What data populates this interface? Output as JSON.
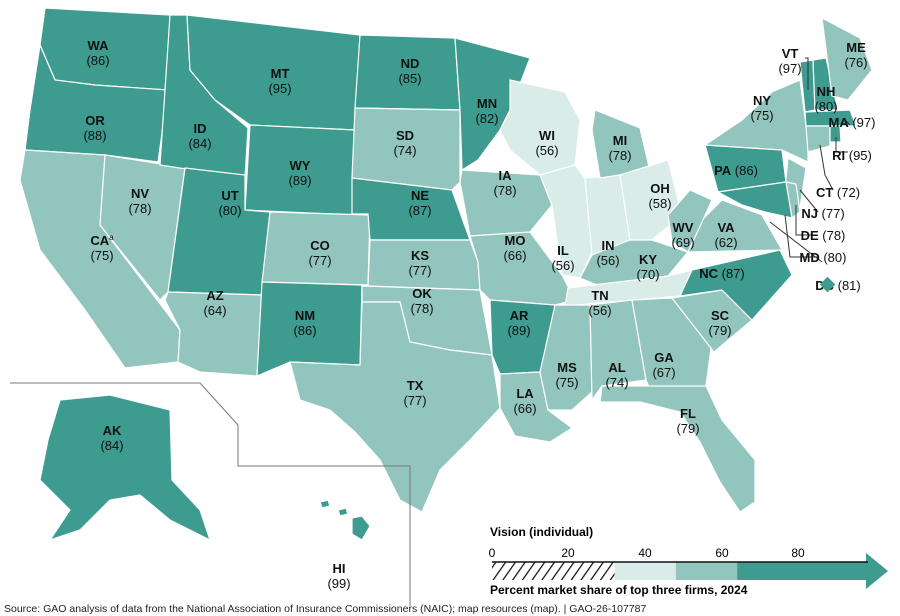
{
  "colors": {
    "tier_80_100": "#3e9b8f",
    "tier_60_80": "#92c5bd",
    "tier_40_60": "#d9ece8",
    "border": "#ffffff"
  },
  "states": [
    {
      "abbr": "WA",
      "value": 86
    },
    {
      "abbr": "OR",
      "value": 88
    },
    {
      "abbr": "CA",
      "value": 75,
      "note": "a"
    },
    {
      "abbr": "NV",
      "value": 78
    },
    {
      "abbr": "ID",
      "value": 84
    },
    {
      "abbr": "MT",
      "value": 95
    },
    {
      "abbr": "WY",
      "value": 89
    },
    {
      "abbr": "UT",
      "value": 80
    },
    {
      "abbr": "AZ",
      "value": 64
    },
    {
      "abbr": "CO",
      "value": 77
    },
    {
      "abbr": "NM",
      "value": 86
    },
    {
      "abbr": "ND",
      "value": 85
    },
    {
      "abbr": "SD",
      "value": 74
    },
    {
      "abbr": "NE",
      "value": 87
    },
    {
      "abbr": "KS",
      "value": 77
    },
    {
      "abbr": "OK",
      "value": 78
    },
    {
      "abbr": "TX",
      "value": 77
    },
    {
      "abbr": "MN",
      "value": 82
    },
    {
      "abbr": "IA",
      "value": 78
    },
    {
      "abbr": "MO",
      "value": 66
    },
    {
      "abbr": "AR",
      "value": 89
    },
    {
      "abbr": "LA",
      "value": 66
    },
    {
      "abbr": "WI",
      "value": 56
    },
    {
      "abbr": "IL",
      "value": 56
    },
    {
      "abbr": "IN",
      "value": 56
    },
    {
      "abbr": "MI",
      "value": 78
    },
    {
      "abbr": "OH",
      "value": 58
    },
    {
      "abbr": "KY",
      "value": 70
    },
    {
      "abbr": "TN",
      "value": 56
    },
    {
      "abbr": "MS",
      "value": 75
    },
    {
      "abbr": "AL",
      "value": 74
    },
    {
      "abbr": "GA",
      "value": 67
    },
    {
      "abbr": "FL",
      "value": 79
    },
    {
      "abbr": "SC",
      "value": 79
    },
    {
      "abbr": "NC",
      "value": 87
    },
    {
      "abbr": "VA",
      "value": 62
    },
    {
      "abbr": "WV",
      "value": 69
    },
    {
      "abbr": "PA",
      "value": 86
    },
    {
      "abbr": "NY",
      "value": 75
    },
    {
      "abbr": "NJ",
      "value": 77
    },
    {
      "abbr": "DE",
      "value": 78
    },
    {
      "abbr": "MD",
      "value": 80
    },
    {
      "abbr": "DC",
      "value": 81
    },
    {
      "abbr": "VT",
      "value": 97
    },
    {
      "abbr": "NH",
      "value": 80
    },
    {
      "abbr": "ME",
      "value": 76
    },
    {
      "abbr": "MA",
      "value": 97
    },
    {
      "abbr": "CT",
      "value": 72
    },
    {
      "abbr": "RI",
      "value": 95
    },
    {
      "abbr": "AK",
      "value": 84
    },
    {
      "abbr": "HI",
      "value": 99
    }
  ],
  "legend": {
    "title": "Vision (individual)",
    "ticks": [
      "0",
      "20",
      "40",
      "60",
      "80"
    ],
    "caption": "Percent market share of top three firms, 2024",
    "bins": [
      {
        "range": [
          0,
          40
        ],
        "style": "hatched"
      },
      {
        "range": [
          40,
          60
        ],
        "color": "#d9ece8"
      },
      {
        "range": [
          60,
          80
        ],
        "color": "#92c5bd"
      },
      {
        "range": [
          80,
          100
        ],
        "color": "#3e9b8f"
      }
    ]
  },
  "source": "Source: GAO analysis of data from the National Association of Insurance Commissioners (NAIC); map resources (map).  |  GAO-26-107787"
}
